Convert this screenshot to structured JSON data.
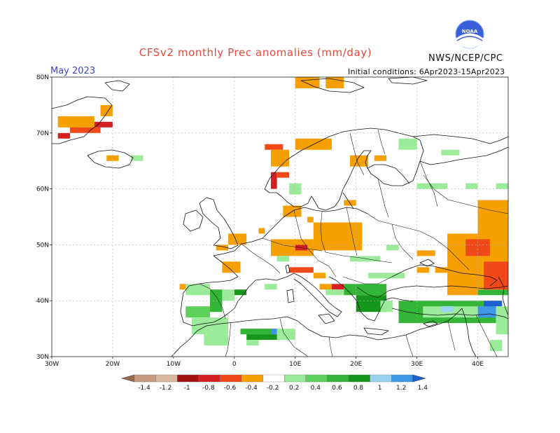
{
  "title": "CFSv2 monthly Prec anomalies (mm/day)",
  "org": "NWS/NCEP/CPC",
  "logo_text": "NOAA",
  "month_label": "May 2023",
  "init_label": "Initial conditions: 6Apr2023-15Apr2023",
  "lat_ticks": [
    "80N",
    "70N",
    "60N",
    "50N",
    "40N",
    "30N"
  ],
  "lon_ticks": [
    "30W",
    "20W",
    "10W",
    "0",
    "10E",
    "20E",
    "30E",
    "40E"
  ],
  "colorbar": {
    "labels": [
      "-1.4",
      "-1.2",
      "-1",
      "-0.8",
      "-0.6",
      "-0.4",
      "-0.2",
      "0.2",
      "0.4",
      "0.6",
      "0.8",
      "1",
      "1.2",
      "1.4"
    ],
    "colors": [
      "#9b6a50",
      "#c89a80",
      "#d9b8a0",
      "#a01010",
      "#d42020",
      "#f04818",
      "#f59f00",
      "#ffffff",
      "#9ceb9a",
      "#5fd05c",
      "#35b538",
      "#16961a",
      "#9ad2f2",
      "#3f97e8",
      "#1e5fd0"
    ]
  },
  "map": {
    "lon_range": [
      -30,
      45
    ],
    "lat_range": [
      30,
      80
    ],
    "anomaly_cells": [
      {
        "lon": -29,
        "lat": 71,
        "w": 6,
        "h": 2,
        "color": "#f59f00"
      },
      {
        "lon": -29,
        "lat": 69,
        "w": 2,
        "h": 1,
        "color": "#d42020"
      },
      {
        "lon": -27,
        "lat": 70,
        "w": 5,
        "h": 1,
        "color": "#f04818"
      },
      {
        "lon": -22,
        "lat": 73,
        "w": 2,
        "h": 2,
        "color": "#f59f00"
      },
      {
        "lon": -23,
        "lat": 71,
        "w": 3,
        "h": 1,
        "color": "#d42020"
      },
      {
        "lon": -21,
        "lat": 65,
        "w": 2,
        "h": 1,
        "color": "#f59f00"
      },
      {
        "lon": -17,
        "lat": 65,
        "w": 2,
        "h": 1,
        "color": "#9ceb9a"
      },
      {
        "lon": 5,
        "lat": 67,
        "w": 3,
        "h": 1,
        "color": "#f04818"
      },
      {
        "lon": 6,
        "lat": 64,
        "w": 3,
        "h": 3,
        "color": "#f59f00"
      },
      {
        "lon": 10,
        "lat": 67,
        "w": 6,
        "h": 2,
        "color": "#f59f00"
      },
      {
        "lon": 6,
        "lat": 60,
        "w": 1,
        "h": 3,
        "color": "#d42020"
      },
      {
        "lon": 7,
        "lat": 62,
        "w": 2,
        "h": 1,
        "color": "#f04818"
      },
      {
        "lon": 19,
        "lat": 64,
        "w": 3,
        "h": 2,
        "color": "#f59f00"
      },
      {
        "lon": 23,
        "lat": 65,
        "w": 2,
        "h": 1,
        "color": "#f59f00"
      },
      {
        "lon": 27,
        "lat": 67,
        "w": 3,
        "h": 2,
        "color": "#9ceb9a"
      },
      {
        "lon": 10,
        "lat": 78,
        "w": 4,
        "h": 2,
        "color": "#f59f00"
      },
      {
        "lon": 15,
        "lat": 78,
        "w": 3,
        "h": 2,
        "color": "#f59f00"
      },
      {
        "lon": 34,
        "lat": 66,
        "w": 3,
        "h": 1,
        "color": "#9ceb9a"
      },
      {
        "lon": 30,
        "lat": 60,
        "w": 5,
        "h": 1,
        "color": "#9ceb9a"
      },
      {
        "lon": 38,
        "lat": 60,
        "w": 2,
        "h": 1,
        "color": "#9ceb9a"
      },
      {
        "lon": 43,
        "lat": 60,
        "w": 2,
        "h": 1,
        "color": "#9ceb9a"
      },
      {
        "lon": 9,
        "lat": 59,
        "w": 2,
        "h": 2,
        "color": "#9ceb9a"
      },
      {
        "lon": 18,
        "lat": 57,
        "w": 2,
        "h": 1,
        "color": "#f59f00"
      },
      {
        "lon": 8,
        "lat": 55,
        "w": 3,
        "h": 2,
        "color": "#f59f00"
      },
      {
        "lon": 12,
        "lat": 54,
        "w": 1,
        "h": 1,
        "color": "#f59f00"
      },
      {
        "lon": 13,
        "lat": 49,
        "w": 8,
        "h": 5,
        "color": "#f59f00"
      },
      {
        "lon": 6,
        "lat": 48,
        "w": 7,
        "h": 3,
        "color": "#f59f00"
      },
      {
        "lon": 10,
        "lat": 49,
        "w": 2,
        "h": 1,
        "color": "#d42020"
      },
      {
        "lon": -1,
        "lat": 50,
        "w": 3,
        "h": 2,
        "color": "#f59f00"
      },
      {
        "lon": -3,
        "lat": 49,
        "w": 2,
        "h": 1,
        "color": "#f59f00"
      },
      {
        "lon": -2,
        "lat": 45,
        "w": 3,
        "h": 2,
        "color": "#f59f00"
      },
      {
        "lon": 4,
        "lat": 52,
        "w": 1,
        "h": 1,
        "color": "#f59f00"
      },
      {
        "lon": 7,
        "lat": 47,
        "w": 2,
        "h": 1,
        "color": "#9ceb9a"
      },
      {
        "lon": 9,
        "lat": 45,
        "w": 4,
        "h": 1,
        "color": "#f04818"
      },
      {
        "lon": 13,
        "lat": 44,
        "w": 2,
        "h": 1,
        "color": "#f59f00"
      },
      {
        "lon": 16,
        "lat": 42,
        "w": 2,
        "h": 1,
        "color": "#d42020"
      },
      {
        "lon": 14,
        "lat": 42,
        "w": 2,
        "h": 1,
        "color": "#f59f00"
      },
      {
        "lon": 19,
        "lat": 47,
        "w": 5,
        "h": 1,
        "color": "#9ceb9a"
      },
      {
        "lon": 22,
        "lat": 44,
        "w": 6,
        "h": 1,
        "color": "#9ceb9a"
      },
      {
        "lon": 18,
        "lat": 41,
        "w": 7,
        "h": 2,
        "color": "#35b538"
      },
      {
        "lon": 20,
        "lat": 38,
        "w": 5,
        "h": 3,
        "color": "#16961a"
      },
      {
        "lon": 24,
        "lat": 38,
        "w": 2,
        "h": 2,
        "color": "#9ceb9a"
      },
      {
        "lon": 27,
        "lat": 36,
        "w": 16,
        "h": 4,
        "color": "#35b538"
      },
      {
        "lon": 31,
        "lat": 37,
        "w": 10,
        "h": 2,
        "color": "#9ceb9a"
      },
      {
        "lon": 34,
        "lat": 38,
        "w": 2,
        "h": 1,
        "color": "#9ad2f2"
      },
      {
        "lon": 40,
        "lat": 37,
        "w": 3,
        "h": 2,
        "color": "#3f97e8"
      },
      {
        "lon": 41,
        "lat": 39,
        "w": 3,
        "h": 1,
        "color": "#1e5fd0"
      },
      {
        "lon": 43,
        "lat": 34,
        "w": 2,
        "h": 5,
        "color": "#9ceb9a"
      },
      {
        "lon": 42,
        "lat": 31,
        "w": 2,
        "h": 2,
        "color": "#9ceb9a"
      },
      {
        "lon": 40,
        "lat": 41,
        "w": 5,
        "h": 1,
        "color": "#35b538"
      },
      {
        "lon": 35,
        "lat": 41,
        "w": 5,
        "h": 11,
        "color": "#f59f00"
      },
      {
        "lon": 40,
        "lat": 42,
        "w": 5,
        "h": 16,
        "color": "#f59f00"
      },
      {
        "lon": 38,
        "lat": 48,
        "w": 4,
        "h": 3,
        "color": "#f04818"
      },
      {
        "lon": 41,
        "lat": 42,
        "w": 4,
        "h": 5,
        "color": "#f04818"
      },
      {
        "lon": 33,
        "lat": 45,
        "w": 3,
        "h": 1,
        "color": "#f59f00"
      },
      {
        "lon": 30,
        "lat": 45,
        "w": 2,
        "h": 1,
        "color": "#f59f00"
      },
      {
        "lon": 30,
        "lat": 48,
        "w": 3,
        "h": 1,
        "color": "#f59f00"
      },
      {
        "lon": 25,
        "lat": 49,
        "w": 2,
        "h": 1,
        "color": "#9ceb9a"
      },
      {
        "lon": -8,
        "lat": 41,
        "w": 4,
        "h": 2,
        "color": "#9ceb9a"
      },
      {
        "lon": -4,
        "lat": 38,
        "w": 2,
        "h": 4,
        "color": "#35b538"
      },
      {
        "lon": -2,
        "lat": 40,
        "w": 2,
        "h": 2,
        "color": "#9ceb9a"
      },
      {
        "lon": -8,
        "lat": 37,
        "w": 4,
        "h": 2,
        "color": "#5fd05c"
      },
      {
        "lon": 0,
        "lat": 41,
        "w": 2,
        "h": 1,
        "color": "#16961a"
      },
      {
        "lon": -7,
        "lat": 34,
        "w": 6,
        "h": 3,
        "color": "#9ceb9a"
      },
      {
        "lon": -5,
        "lat": 32,
        "w": 4,
        "h": 2,
        "color": "#9ceb9a"
      },
      {
        "lon": 1,
        "lat": 34,
        "w": 6,
        "h": 1,
        "color": "#35b538"
      },
      {
        "lon": 2,
        "lat": 33,
        "w": 6,
        "h": 1,
        "color": "#16961a"
      },
      {
        "lon": 6,
        "lat": 34,
        "w": 1,
        "h": 1,
        "color": "#3f97e8"
      },
      {
        "lon": 7,
        "lat": 33,
        "w": 3,
        "h": 2,
        "color": "#9ceb9a"
      },
      {
        "lon": 2,
        "lat": 32,
        "w": 2,
        "h": 1,
        "color": "#9ceb9a"
      },
      {
        "lon": 15,
        "lat": 41,
        "w": 3,
        "h": 1,
        "color": "#9ceb9a"
      },
      {
        "lon": 5,
        "lat": 42,
        "w": 2,
        "h": 1,
        "color": "#9ceb9a"
      },
      {
        "lon": -9,
        "lat": 42,
        "w": 1,
        "h": 1,
        "color": "#f59f00"
      }
    ]
  }
}
